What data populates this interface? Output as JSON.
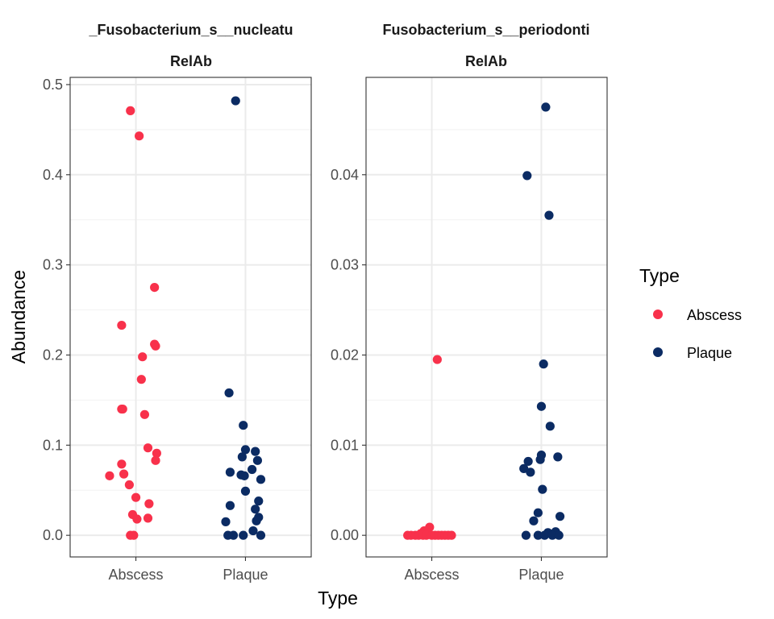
{
  "chart_data": {
    "type": "scatter",
    "xlabel": "Type",
    "ylabel": "Abundance",
    "categories": [
      "Abscess",
      "Plaque"
    ],
    "legend": {
      "title": "Type",
      "position": "right",
      "entries": [
        {
          "label": "Abscess",
          "color": "#f8314b"
        },
        {
          "label": "Plaque",
          "color": "#0b2b63"
        }
      ]
    },
    "grid": true,
    "facets": [
      {
        "title": "_Fusobacterium_s__nucleatu",
        "subtitle": "RelAb",
        "ylim": [
          -0.024,
          0.508
        ],
        "yticks": [
          "0.0",
          "0.1",
          "0.2",
          "0.3",
          "0.4",
          "0.5"
        ],
        "ytick_values": [
          0,
          0.1,
          0.2,
          0.3,
          0.4,
          0.5
        ],
        "series": [
          {
            "name": "Abscess",
            "points": [
              [
                0.95,
                0.471
              ],
              [
                1.03,
                0.443
              ],
              [
                1.17,
                0.275
              ],
              [
                0.87,
                0.233
              ],
              [
                1.17,
                0.212
              ],
              [
                1.18,
                0.21
              ],
              [
                1.06,
                0.198
              ],
              [
                1.05,
                0.173
              ],
              [
                0.87,
                0.14
              ],
              [
                0.88,
                0.14
              ],
              [
                1.08,
                0.134
              ],
              [
                1.11,
                0.097
              ],
              [
                1.19,
                0.091
              ],
              [
                1.18,
                0.083
              ],
              [
                0.87,
                0.079
              ],
              [
                0.89,
                0.068
              ],
              [
                0.76,
                0.066
              ],
              [
                0.94,
                0.056
              ],
              [
                1.0,
                0.042
              ],
              [
                1.12,
                0.035
              ],
              [
                0.97,
                0.023
              ],
              [
                1.01,
                0.018
              ],
              [
                1.11,
                0.019
              ],
              [
                0.95,
                0.0
              ],
              [
                0.98,
                0.0
              ]
            ]
          },
          {
            "name": "Plaque",
            "points": [
              [
                1.91,
                0.482
              ],
              [
                1.85,
                0.158
              ],
              [
                1.98,
                0.122
              ],
              [
                2.0,
                0.095
              ],
              [
                2.09,
                0.093
              ],
              [
                1.97,
                0.087
              ],
              [
                2.11,
                0.083
              ],
              [
                2.06,
                0.073
              ],
              [
                1.86,
                0.07
              ],
              [
                1.96,
                0.067
              ],
              [
                1.99,
                0.066
              ],
              [
                2.14,
                0.062
              ],
              [
                2.0,
                0.049
              ],
              [
                2.12,
                0.038
              ],
              [
                1.86,
                0.033
              ],
              [
                2.09,
                0.029
              ],
              [
                2.12,
                0.02
              ],
              [
                1.82,
                0.015
              ],
              [
                2.1,
                0.016
              ],
              [
                2.07,
                0.005
              ],
              [
                1.84,
                0.0
              ],
              [
                1.89,
                0.0
              ],
              [
                1.98,
                0.0
              ],
              [
                2.14,
                0.0
              ]
            ]
          }
        ]
      },
      {
        "title": "Fusobacterium_s__periodonti",
        "subtitle": "RelAb",
        "ylim": [
          -0.0024,
          0.0508
        ],
        "yticks": [
          "0.00",
          "0.01",
          "0.02",
          "0.03",
          "0.04"
        ],
        "ytick_values": [
          0,
          0.01,
          0.02,
          0.03,
          0.04
        ],
        "series": [
          {
            "name": "Abscess",
            "points": [
              [
                1.05,
                0.0195
              ],
              [
                0.98,
                0.0009
              ],
              [
                0.93,
                0.0005
              ],
              [
                0.96,
                0.0003
              ],
              [
                0.9,
                0.0002
              ],
              [
                0.78,
                0.0
              ],
              [
                0.81,
                0.0
              ],
              [
                0.85,
                0.0
              ],
              [
                0.88,
                0.0
              ],
              [
                0.92,
                0.0
              ],
              [
                0.95,
                0.0
              ],
              [
                1.0,
                0.0
              ],
              [
                1.03,
                0.0
              ],
              [
                1.06,
                0.0
              ],
              [
                1.09,
                0.0
              ],
              [
                1.12,
                0.0
              ],
              [
                1.15,
                0.0
              ],
              [
                1.18,
                0.0
              ]
            ]
          },
          {
            "name": "Plaque",
            "points": [
              [
                2.04,
                0.0475
              ],
              [
                1.87,
                0.0399
              ],
              [
                2.07,
                0.0355
              ],
              [
                2.02,
                0.019
              ],
              [
                2.0,
                0.0143
              ],
              [
                2.08,
                0.0121
              ],
              [
                2.0,
                0.0089
              ],
              [
                2.15,
                0.0087
              ],
              [
                1.99,
                0.0084
              ],
              [
                1.88,
                0.0082
              ],
              [
                1.84,
                0.0074
              ],
              [
                1.9,
                0.007
              ],
              [
                2.01,
                0.0051
              ],
              [
                1.97,
                0.0025
              ],
              [
                2.17,
                0.0021
              ],
              [
                1.93,
                0.0016
              ],
              [
                2.13,
                0.0004
              ],
              [
                2.06,
                0.0003
              ],
              [
                1.86,
                0.0
              ],
              [
                1.97,
                0.0
              ],
              [
                2.03,
                0.0
              ],
              [
                2.1,
                0.0
              ],
              [
                2.16,
                0.0
              ]
            ]
          }
        ]
      }
    ]
  }
}
